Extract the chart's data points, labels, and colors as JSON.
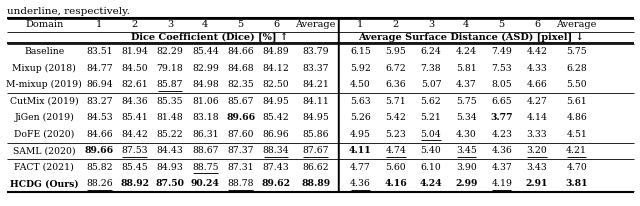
{
  "caption": "underline, respectively.",
  "rows": [
    {
      "method": "Baseline",
      "dice": [
        "83.51",
        "81.94",
        "82.29",
        "85.44",
        "84.66",
        "84.89",
        "83.79"
      ],
      "asd": [
        "6.15",
        "5.95",
        "6.24",
        "4.24",
        "7.49",
        "4.42",
        "5.75"
      ],
      "dice_bold": [
        false,
        false,
        false,
        false,
        false,
        false,
        false
      ],
      "dice_underline": [
        false,
        false,
        false,
        false,
        false,
        false,
        false
      ],
      "asd_bold": [
        false,
        false,
        false,
        false,
        false,
        false,
        false
      ],
      "asd_underline": [
        false,
        false,
        false,
        false,
        false,
        false,
        false
      ],
      "method_bold": false
    },
    {
      "method": "Mixup (2018)",
      "dice": [
        "84.77",
        "84.50",
        "79.18",
        "82.99",
        "84.68",
        "84.12",
        "83.37"
      ],
      "asd": [
        "5.92",
        "6.72",
        "7.38",
        "5.81",
        "7.53",
        "4.33",
        "6.28"
      ],
      "dice_bold": [
        false,
        false,
        false,
        false,
        false,
        false,
        false
      ],
      "dice_underline": [
        false,
        false,
        false,
        false,
        false,
        false,
        false
      ],
      "asd_bold": [
        false,
        false,
        false,
        false,
        false,
        false,
        false
      ],
      "asd_underline": [
        false,
        false,
        false,
        false,
        false,
        false,
        false
      ],
      "method_bold": false
    },
    {
      "method": "M-mixup (2019)",
      "dice": [
        "86.94",
        "82.61",
        "85.87",
        "84.98",
        "82.35",
        "82.50",
        "84.21"
      ],
      "asd": [
        "4.50",
        "6.36",
        "5.07",
        "4.37",
        "8.05",
        "4.66",
        "5.50"
      ],
      "dice_bold": [
        false,
        false,
        false,
        false,
        false,
        false,
        false
      ],
      "dice_underline": [
        false,
        false,
        true,
        false,
        false,
        false,
        false
      ],
      "asd_bold": [
        false,
        false,
        false,
        false,
        false,
        false,
        false
      ],
      "asd_underline": [
        false,
        false,
        false,
        false,
        false,
        false,
        false
      ],
      "method_bold": false
    },
    {
      "method": "CutMix (2019)",
      "dice": [
        "83.27",
        "84.36",
        "85.35",
        "81.06",
        "85.67",
        "84.95",
        "84.11"
      ],
      "asd": [
        "5.63",
        "5.71",
        "5.62",
        "5.75",
        "6.65",
        "4.27",
        "5.61"
      ],
      "dice_bold": [
        false,
        false,
        false,
        false,
        false,
        false,
        false
      ],
      "dice_underline": [
        false,
        false,
        false,
        false,
        false,
        false,
        false
      ],
      "asd_bold": [
        false,
        false,
        false,
        false,
        false,
        false,
        false
      ],
      "asd_underline": [
        false,
        false,
        false,
        false,
        false,
        false,
        false
      ],
      "method_bold": false
    },
    {
      "method": "JiGen (2019)",
      "dice": [
        "84.53",
        "85.41",
        "81.48",
        "83.18",
        "89.66",
        "85.42",
        "84.95"
      ],
      "asd": [
        "5.26",
        "5.42",
        "5.21",
        "5.34",
        "3.77",
        "4.14",
        "4.86"
      ],
      "dice_bold": [
        false,
        false,
        false,
        false,
        true,
        false,
        false
      ],
      "dice_underline": [
        false,
        false,
        false,
        false,
        false,
        false,
        false
      ],
      "asd_bold": [
        false,
        false,
        false,
        false,
        true,
        false,
        false
      ],
      "asd_underline": [
        false,
        false,
        false,
        false,
        false,
        false,
        false
      ],
      "method_bold": false
    },
    {
      "method": "DoFE (2020)",
      "dice": [
        "84.66",
        "84.42",
        "85.22",
        "86.31",
        "87.60",
        "86.96",
        "85.86"
      ],
      "asd": [
        "4.95",
        "5.23",
        "5.04",
        "4.30",
        "4.23",
        "3.33",
        "4.51"
      ],
      "dice_bold": [
        false,
        false,
        false,
        false,
        false,
        false,
        false
      ],
      "dice_underline": [
        false,
        false,
        false,
        false,
        false,
        false,
        false
      ],
      "asd_bold": [
        false,
        false,
        false,
        false,
        false,
        false,
        false
      ],
      "asd_underline": [
        false,
        false,
        true,
        false,
        false,
        false,
        false
      ],
      "method_bold": false
    },
    {
      "method": "SAML (2020)",
      "dice": [
        "89.66",
        "87.53",
        "84.43",
        "88.67",
        "87.37",
        "88.34",
        "87.67"
      ],
      "asd": [
        "4.11",
        "4.74",
        "5.40",
        "3.45",
        "4.36",
        "3.20",
        "4.21"
      ],
      "dice_bold": [
        true,
        false,
        false,
        false,
        false,
        false,
        false
      ],
      "dice_underline": [
        false,
        true,
        false,
        false,
        false,
        true,
        true
      ],
      "asd_bold": [
        true,
        false,
        false,
        false,
        false,
        false,
        false
      ],
      "asd_underline": [
        false,
        true,
        false,
        true,
        false,
        true,
        true
      ],
      "method_bold": false
    },
    {
      "method": "FACT (2021)",
      "dice": [
        "85.82",
        "85.45",
        "84.93",
        "88.75",
        "87.31",
        "87.43",
        "86.62"
      ],
      "asd": [
        "4.77",
        "5.60",
        "6.10",
        "3.90",
        "4.37",
        "3.43",
        "4.70"
      ],
      "dice_bold": [
        false,
        false,
        false,
        false,
        false,
        false,
        false
      ],
      "dice_underline": [
        false,
        false,
        false,
        true,
        false,
        false,
        false
      ],
      "asd_bold": [
        false,
        false,
        false,
        false,
        false,
        false,
        false
      ],
      "asd_underline": [
        false,
        false,
        false,
        false,
        false,
        false,
        false
      ],
      "method_bold": false
    },
    {
      "method": "HCDG (Ours)",
      "dice": [
        "88.26",
        "88.92",
        "87.50",
        "90.24",
        "88.78",
        "89.62",
        "88.89"
      ],
      "asd": [
        "4.36",
        "4.16",
        "4.24",
        "2.99",
        "4.19",
        "2.91",
        "3.81"
      ],
      "dice_bold": [
        false,
        true,
        true,
        true,
        false,
        true,
        true
      ],
      "dice_underline": [
        true,
        false,
        false,
        false,
        true,
        false,
        false
      ],
      "asd_bold": [
        false,
        true,
        true,
        true,
        false,
        true,
        true
      ],
      "asd_underline": [
        true,
        false,
        false,
        false,
        true,
        false,
        false
      ],
      "method_bold": true
    }
  ],
  "group_separators_after": [
    2,
    5,
    6
  ],
  "figsize": [
    6.4,
    2.06
  ],
  "dpi": 100
}
